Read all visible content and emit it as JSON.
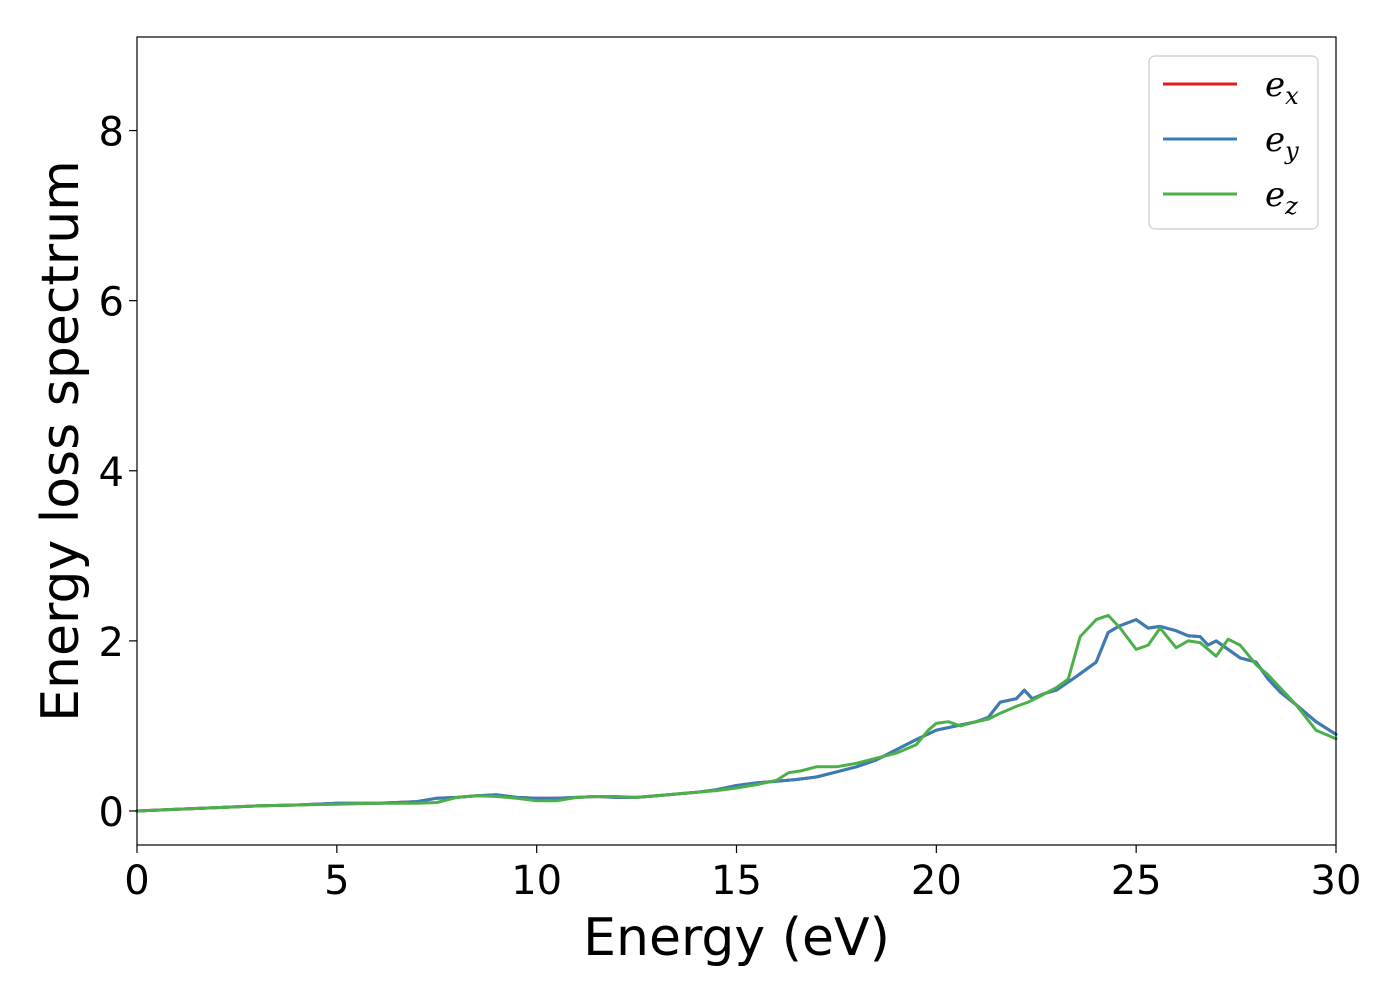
{
  "chart_data": {
    "type": "line",
    "title": "",
    "xlabel": "Energy (eV)",
    "ylabel": "Energy loss spectrum",
    "xlim": [
      0,
      30
    ],
    "ylim": [
      -0.4,
      9.1
    ],
    "xticks": [
      0,
      5,
      10,
      15,
      20,
      25,
      30
    ],
    "yticks": [
      0,
      2,
      4,
      6,
      8
    ],
    "grid": false,
    "legend_position": "top-right",
    "series": [
      {
        "name": "e",
        "subscript": "x",
        "color": "#e41a1c",
        "x": [
          0,
          1,
          2,
          3,
          4,
          5,
          6,
          7,
          7.5,
          8,
          8.5,
          9,
          9.5,
          10,
          10.5,
          11,
          11.5,
          12,
          12.5,
          13,
          13.5,
          14,
          14.5,
          15,
          15.5,
          16,
          16.5,
          17,
          17.5,
          18,
          18.5,
          19,
          19.5,
          20,
          20.5,
          21,
          21.3,
          21.6,
          22,
          22.2,
          22.4,
          22.7,
          23,
          23.5,
          24,
          24.3,
          24.6,
          25,
          25.3,
          25.6,
          26,
          26.3,
          26.6,
          26.8,
          27,
          27.3,
          27.6,
          28,
          28.3,
          28.6,
          29,
          29.5,
          30
        ],
        "y": [
          0,
          0.02,
          0.04,
          0.06,
          0.07,
          0.09,
          0.09,
          0.11,
          0.15,
          0.16,
          0.18,
          0.19,
          0.16,
          0.15,
          0.15,
          0.16,
          0.17,
          0.16,
          0.16,
          0.18,
          0.2,
          0.22,
          0.25,
          0.3,
          0.33,
          0.35,
          0.37,
          0.4,
          0.46,
          0.52,
          0.6,
          0.72,
          0.84,
          0.95,
          1.0,
          1.05,
          1.1,
          1.28,
          1.32,
          1.42,
          1.32,
          1.38,
          1.42,
          1.58,
          1.75,
          2.1,
          2.18,
          2.25,
          2.15,
          2.17,
          2.12,
          2.06,
          2.05,
          1.95,
          2.0,
          1.9,
          1.8,
          1.75,
          1.55,
          1.4,
          1.25,
          1.05,
          0.9
        ]
      },
      {
        "name": "e",
        "subscript": "y",
        "color": "#377eb8",
        "x": [
          0,
          1,
          2,
          3,
          4,
          5,
          6,
          7,
          7.5,
          8,
          8.5,
          9,
          9.5,
          10,
          10.5,
          11,
          11.5,
          12,
          12.5,
          13,
          13.5,
          14,
          14.5,
          15,
          15.5,
          16,
          16.5,
          17,
          17.5,
          18,
          18.5,
          19,
          19.5,
          20,
          20.5,
          21,
          21.3,
          21.6,
          22,
          22.2,
          22.4,
          22.7,
          23,
          23.5,
          24,
          24.3,
          24.6,
          25,
          25.3,
          25.6,
          26,
          26.3,
          26.6,
          26.8,
          27,
          27.3,
          27.6,
          28,
          28.3,
          28.6,
          29,
          29.5,
          30
        ],
        "y": [
          0,
          0.02,
          0.04,
          0.06,
          0.07,
          0.09,
          0.09,
          0.11,
          0.15,
          0.16,
          0.18,
          0.19,
          0.16,
          0.15,
          0.15,
          0.16,
          0.17,
          0.16,
          0.16,
          0.18,
          0.2,
          0.22,
          0.25,
          0.3,
          0.33,
          0.35,
          0.37,
          0.4,
          0.46,
          0.52,
          0.6,
          0.72,
          0.84,
          0.95,
          1.0,
          1.05,
          1.1,
          1.28,
          1.32,
          1.42,
          1.32,
          1.38,
          1.42,
          1.58,
          1.75,
          2.1,
          2.18,
          2.25,
          2.15,
          2.17,
          2.12,
          2.06,
          2.05,
          1.95,
          2.0,
          1.9,
          1.8,
          1.75,
          1.55,
          1.4,
          1.25,
          1.05,
          0.9
        ]
      },
      {
        "name": "e",
        "subscript": "z",
        "color": "#4daf4a",
        "x": [
          0,
          1,
          2,
          3,
          4,
          5,
          6,
          7,
          7.5,
          8,
          8.5,
          9,
          9.5,
          10,
          10.5,
          11,
          11.5,
          12,
          12.5,
          13,
          13.5,
          14,
          14.5,
          15,
          15.5,
          16,
          16.3,
          16.6,
          17,
          17.5,
          18,
          18.5,
          19,
          19.5,
          19.8,
          20,
          20.3,
          20.6,
          21,
          21.3,
          21.6,
          22,
          22.3,
          22.6,
          23,
          23.3,
          23.6,
          24,
          24.3,
          24.6,
          25,
          25.3,
          25.6,
          26,
          26.3,
          26.6,
          27,
          27.3,
          27.6,
          28,
          28.3,
          28.6,
          29,
          29.5,
          30
        ],
        "y": [
          0,
          0.02,
          0.04,
          0.06,
          0.07,
          0.08,
          0.09,
          0.09,
          0.1,
          0.16,
          0.18,
          0.17,
          0.15,
          0.12,
          0.12,
          0.16,
          0.17,
          0.17,
          0.16,
          0.18,
          0.2,
          0.22,
          0.24,
          0.27,
          0.31,
          0.36,
          0.45,
          0.47,
          0.52,
          0.52,
          0.56,
          0.62,
          0.68,
          0.78,
          0.95,
          1.03,
          1.05,
          1.0,
          1.05,
          1.08,
          1.15,
          1.23,
          1.28,
          1.35,
          1.45,
          1.55,
          2.05,
          2.25,
          2.3,
          2.15,
          1.9,
          1.95,
          2.15,
          1.92,
          2.0,
          1.98,
          1.82,
          2.02,
          1.95,
          1.72,
          1.6,
          1.45,
          1.25,
          0.95,
          0.85
        ]
      }
    ]
  }
}
